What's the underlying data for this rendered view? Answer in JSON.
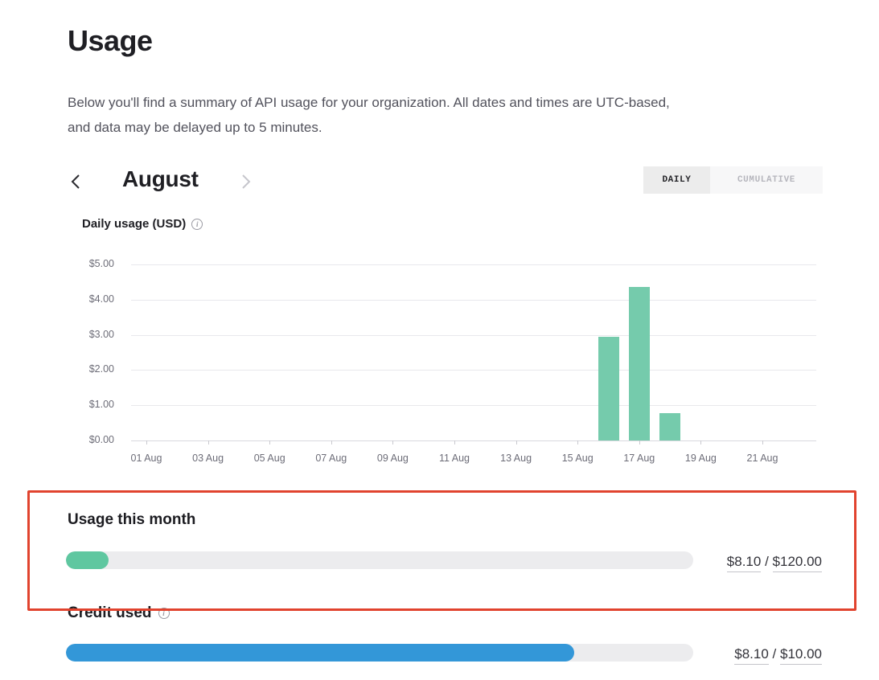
{
  "page": {
    "title": "Usage",
    "description_lines": [
      "Below you'll find a summary of API usage for your organization. All dates and times are UTC-based,",
      "and data may be delayed up to 5 minutes."
    ]
  },
  "month_nav": {
    "month_label": "August",
    "prev_icon": "chevron-left",
    "next_icon": "chevron-right"
  },
  "view_toggle": {
    "daily_label": "DAILY",
    "cumulative_label": "CUMULATIVE",
    "active": "DAILY"
  },
  "info_icon_glyph": "i",
  "chart_data": {
    "type": "bar",
    "title": "Daily usage (USD)",
    "ylabel": "",
    "xlabel": "",
    "ylim": [
      0,
      5
    ],
    "y_ticks": [
      "$5.00",
      "$4.00",
      "$3.00",
      "$2.00",
      "$1.00",
      "$0.00"
    ],
    "grid": true,
    "legend": "none",
    "x_ticks": [
      {
        "label": "01 Aug",
        "day": 1
      },
      {
        "label": "03 Aug",
        "day": 3
      },
      {
        "label": "05 Aug",
        "day": 5
      },
      {
        "label": "07 Aug",
        "day": 7
      },
      {
        "label": "09 Aug",
        "day": 9
      },
      {
        "label": "11 Aug",
        "day": 11
      },
      {
        "label": "13 Aug",
        "day": 13
      },
      {
        "label": "15 Aug",
        "day": 15
      },
      {
        "label": "17 Aug",
        "day": 17
      },
      {
        "label": "19 Aug",
        "day": 19
      },
      {
        "label": "21 Aug",
        "day": 21
      }
    ],
    "bars": [
      {
        "day": 16,
        "value": 2.95
      },
      {
        "day": 17,
        "value": 4.37
      },
      {
        "day": 18,
        "value": 0.78
      }
    ],
    "bar_color": "#75cbac"
  },
  "usage_this_month": {
    "heading": "Usage this month",
    "used": "$8.10",
    "separator": "/",
    "limit": "$120.00",
    "percent": 6.75,
    "fill_color": "#5fc7a0"
  },
  "credit_used": {
    "heading": "Credit used",
    "used": "$8.10",
    "separator": "/",
    "limit": "$10.00",
    "percent": 81,
    "fill_color": "#3397d8"
  },
  "annotation": {
    "highlight_color": "#e1432e"
  }
}
